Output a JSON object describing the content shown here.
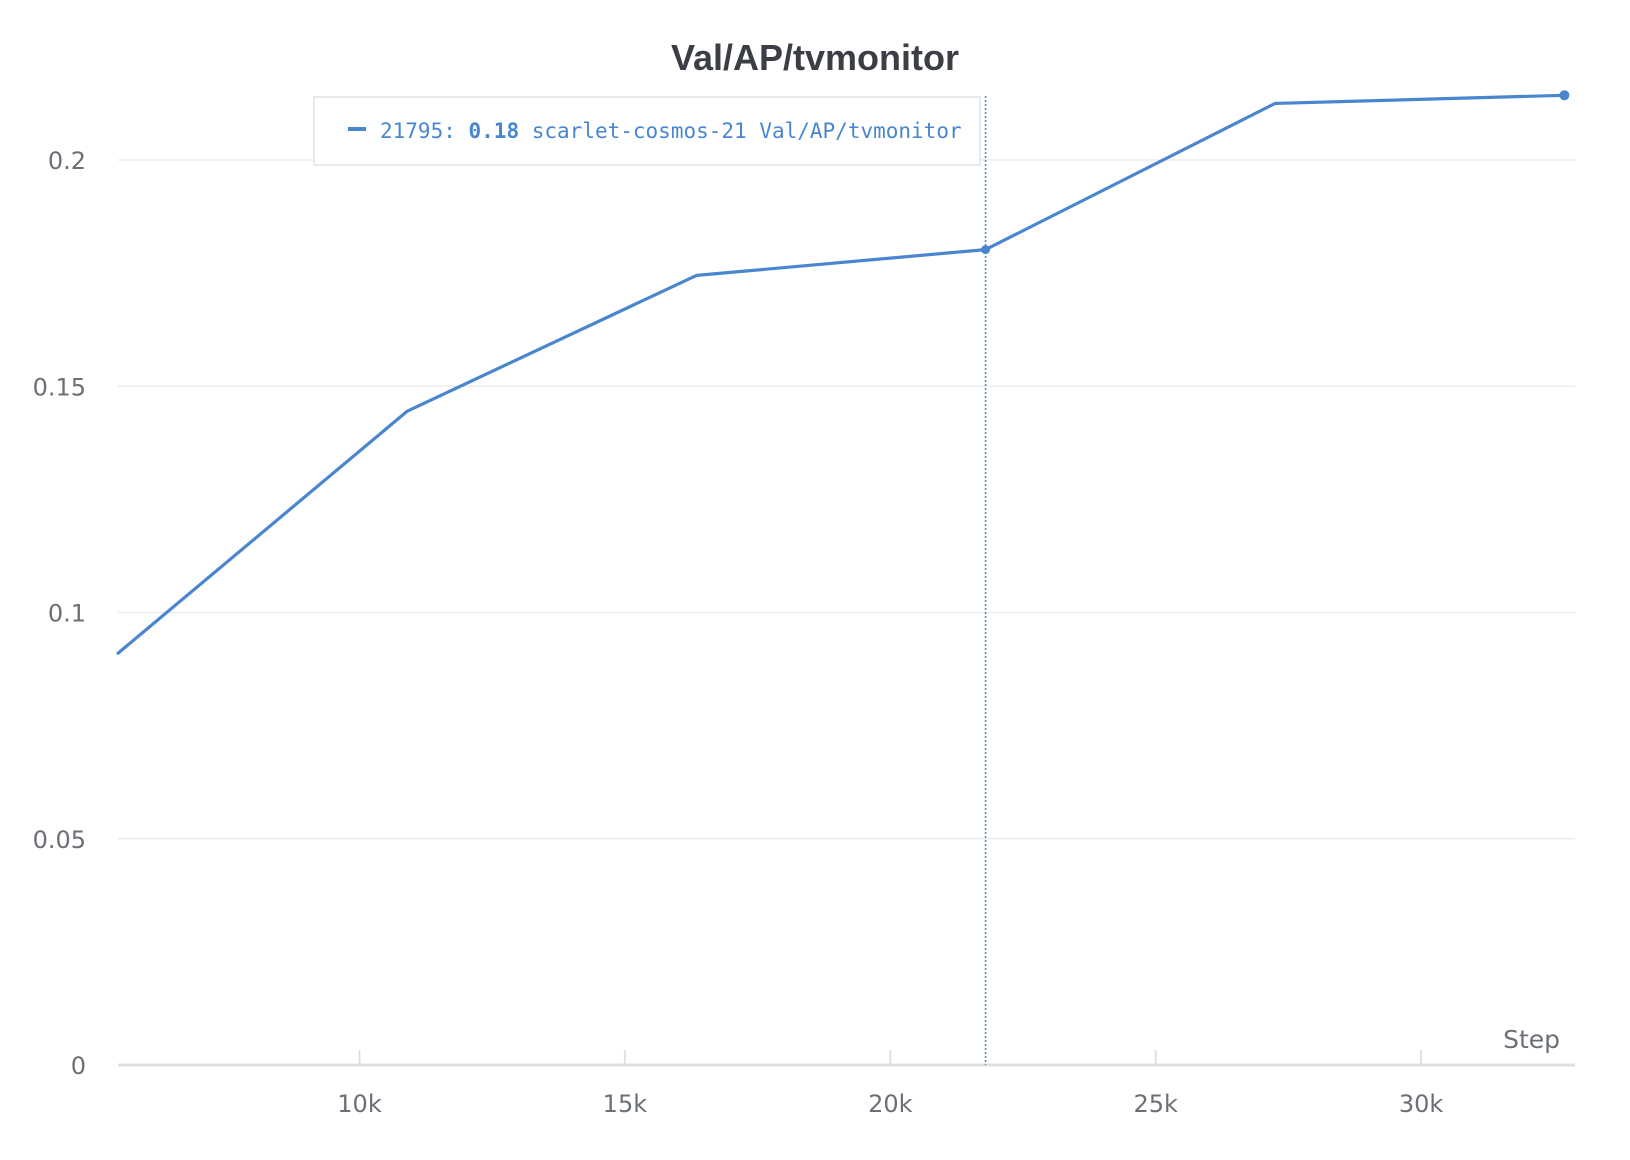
{
  "chart_data": {
    "type": "line",
    "title": "Val/AP/tvmonitor",
    "xlabel": "Step",
    "ylabel": "",
    "xlim": [
      5450,
      32900
    ],
    "ylim": [
      0,
      0.2
    ],
    "x_ticks": [
      10000,
      15000,
      20000,
      25000,
      30000
    ],
    "x_tick_labels": [
      "10k",
      "15k",
      "20k",
      "25k",
      "30k"
    ],
    "y_ticks": [
      0,
      0.05,
      0.1,
      0.15,
      0.2
    ],
    "y_tick_labels": [
      "0",
      "0.05",
      "0.1",
      "0.15",
      "0.2"
    ],
    "grid": true,
    "series": [
      {
        "name": "scarlet-cosmos-21 Val/AP/tvmonitor",
        "color": "#4a86cf",
        "x": [
          5450,
          10900,
          16350,
          21795,
          27250,
          32700
        ],
        "y": [
          0.091,
          0.1445,
          0.1745,
          0.1802,
          0.2125,
          0.2143
        ]
      }
    ],
    "hover": {
      "step": 21795,
      "step_label": "21795:",
      "value_label": "0.18",
      "series_label": "scarlet-cosmos-21 Val/AP/tvmonitor"
    },
    "legend_position": "top-left"
  }
}
